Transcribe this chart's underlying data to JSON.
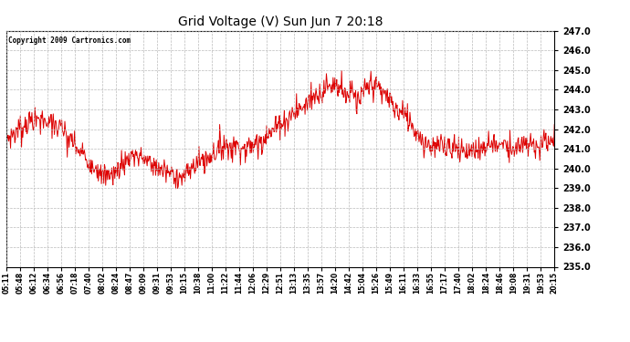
{
  "title": "Grid Voltage (V) Sun Jun 7 20:18",
  "copyright": "Copyright 2009 Cartronics.com",
  "line_color": "#dd0000",
  "background_color": "#ffffff",
  "grid_color": "#bbbbbb",
  "ylim": [
    235.0,
    247.0
  ],
  "yticks": [
    235.0,
    236.0,
    237.0,
    238.0,
    239.0,
    240.0,
    241.0,
    242.0,
    243.0,
    244.0,
    245.0,
    246.0,
    247.0
  ],
  "xtick_labels": [
    "05:11",
    "05:48",
    "06:12",
    "06:34",
    "06:56",
    "07:18",
    "07:40",
    "08:02",
    "08:24",
    "08:47",
    "09:09",
    "09:31",
    "09:53",
    "10:15",
    "10:38",
    "11:00",
    "11:22",
    "11:44",
    "12:06",
    "12:29",
    "12:51",
    "13:13",
    "13:35",
    "13:57",
    "14:20",
    "14:42",
    "15:04",
    "15:26",
    "15:49",
    "16:11",
    "16:33",
    "16:55",
    "17:17",
    "17:40",
    "18:02",
    "18:24",
    "18:46",
    "19:08",
    "19:31",
    "19:53",
    "20:15"
  ],
  "n_points": 900,
  "seed": 7,
  "profile_x": [
    0,
    30,
    60,
    90,
    110,
    140,
    160,
    190,
    210,
    240,
    260,
    290,
    310,
    340,
    360,
    390,
    420,
    440,
    460,
    480,
    500,
    520,
    540,
    560,
    580,
    600,
    620,
    640,
    660,
    680,
    700,
    720,
    740,
    760,
    780,
    800,
    820,
    840,
    860,
    880,
    899
  ],
  "profile_y": [
    241.5,
    242.3,
    242.6,
    242.0,
    241.2,
    240.3,
    239.5,
    240.1,
    240.8,
    240.2,
    239.8,
    239.5,
    240.2,
    240.8,
    241.2,
    241.0,
    241.5,
    242.0,
    242.5,
    243.0,
    243.5,
    244.0,
    244.3,
    243.8,
    243.5,
    244.5,
    243.8,
    243.0,
    242.5,
    241.5,
    241.0,
    241.2,
    241.0,
    240.8,
    241.0,
    241.3,
    241.2,
    241.0,
    241.2,
    241.3,
    241.5
  ]
}
